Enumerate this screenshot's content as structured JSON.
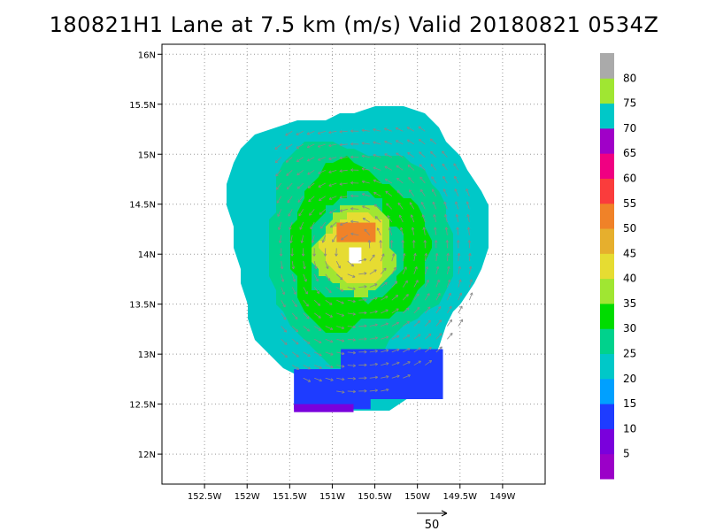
{
  "chart_data": {
    "type": "heatmap",
    "title": "180821H1 Lane at 7.5 km (m/s) Valid 20180821 0534Z",
    "xlabel": "",
    "ylabel": "",
    "xlim": [
      -153.0,
      -148.5
    ],
    "ylim": [
      11.7,
      16.1
    ],
    "x_ticks": [
      {
        "value": -152.5,
        "label": "152.5W"
      },
      {
        "value": -152.0,
        "label": "152W"
      },
      {
        "value": -151.5,
        "label": "151.5W"
      },
      {
        "value": -151.0,
        "label": "151W"
      },
      {
        "value": -150.5,
        "label": "150.5W"
      },
      {
        "value": -150.0,
        "label": "150W"
      },
      {
        "value": -149.5,
        "label": "149.5W"
      },
      {
        "value": -149.0,
        "label": "149W"
      }
    ],
    "y_ticks": [
      {
        "value": 12.0,
        "label": "12N"
      },
      {
        "value": 12.5,
        "label": "12.5N"
      },
      {
        "value": 13.0,
        "label": "13N"
      },
      {
        "value": 13.5,
        "label": "13.5N"
      },
      {
        "value": 14.0,
        "label": "14N"
      },
      {
        "value": 14.5,
        "label": "14.5N"
      },
      {
        "value": 15.0,
        "label": "15N"
      },
      {
        "value": 15.5,
        "label": "15.5N"
      },
      {
        "value": 16.0,
        "label": "16N"
      }
    ],
    "grid": true,
    "storm_center": {
      "lon": -150.72,
      "lat": 14.05
    },
    "colorbar": {
      "bins": [
        {
          "low": 0,
          "high": 5,
          "color": "#9b00c8"
        },
        {
          "low": 5,
          "high": 10,
          "color": "#7a00dc"
        },
        {
          "low": 10,
          "high": 15,
          "color": "#1e3cff"
        },
        {
          "low": 15,
          "high": 20,
          "color": "#00a0ff"
        },
        {
          "low": 20,
          "high": 25,
          "color": "#00c8c8"
        },
        {
          "low": 25,
          "high": 30,
          "color": "#00d28c"
        },
        {
          "low": 30,
          "high": 35,
          "color": "#00dc00"
        },
        {
          "low": 35,
          "high": 40,
          "color": "#a0e632"
        },
        {
          "low": 40,
          "high": 45,
          "color": "#e6dc32"
        },
        {
          "low": 45,
          "high": 50,
          "color": "#e6af2d"
        },
        {
          "low": 50,
          "high": 55,
          "color": "#f08228"
        },
        {
          "low": 55,
          "high": 60,
          "color": "#fa3c3c"
        },
        {
          "low": 60,
          "high": 65,
          "color": "#f00082"
        },
        {
          "low": 65,
          "high": 70,
          "color": "#a000c8"
        },
        {
          "low": 70,
          "high": 75,
          "color": "#00c8c8"
        },
        {
          "low": 75,
          "high": 80,
          "color": "#a0e632"
        },
        {
          "low": 80,
          "high": 85,
          "color": "#aaaaaa"
        }
      ],
      "labels": [
        "5",
        "10",
        "15",
        "20",
        "25",
        "30",
        "35",
        "40",
        "45",
        "50",
        "55",
        "60",
        "65",
        "70",
        "75",
        "80"
      ]
    },
    "rings": [
      {
        "r": 1.5,
        "value": 22,
        "color": "#00c8c8"
      },
      {
        "r": 1.08,
        "value": 27,
        "color": "#00d28c"
      },
      {
        "r": 0.82,
        "value": 32,
        "color": "#00dc00"
      },
      {
        "r": 0.55,
        "value": 28,
        "color": "#00d28c"
      },
      {
        "r": 0.46,
        "value": 38,
        "color": "#a0e632"
      },
      {
        "r": 0.36,
        "value": 43,
        "color": "#e6dc32"
      }
    ],
    "south_band": [
      {
        "lon": [
          -151.45,
          -150.55
        ],
        "lat": [
          12.45,
          12.85
        ],
        "value": 12,
        "color": "#1e3cff"
      },
      {
        "lon": [
          -150.9,
          -149.7
        ],
        "lat": [
          12.55,
          13.05
        ],
        "value": 14,
        "color": "#1e3cff"
      },
      {
        "lon": [
          -151.45,
          -150.75
        ],
        "lat": [
          12.42,
          12.5
        ],
        "value": 7,
        "color": "#7a00dc"
      }
    ],
    "vector_scale": {
      "value": 50,
      "label": "50"
    }
  }
}
